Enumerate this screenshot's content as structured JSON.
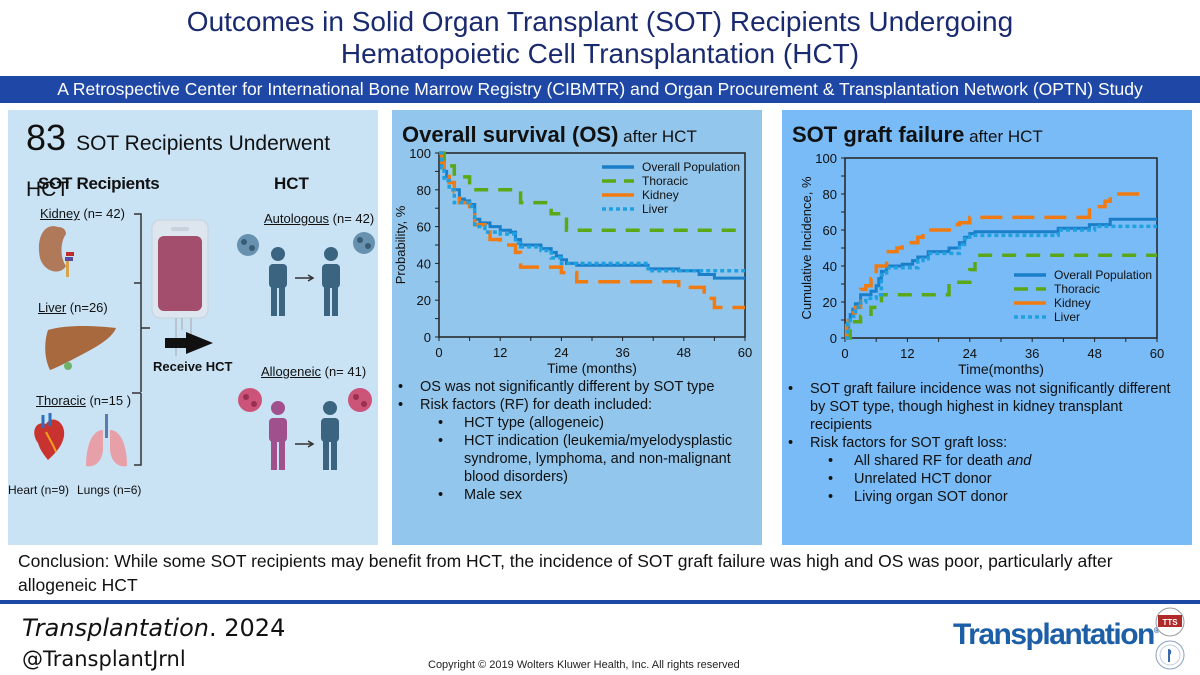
{
  "header": {
    "title_line1": "Outcomes in Solid Organ Transplant (SOT) Recipients Undergoing",
    "title_line2": "Hematopoietic Cell Transplantation (HCT)",
    "subtitle": "A Retrospective Center for International Bone Marrow Registry (CIBMTR) and Organ Procurement & Transplantation Network (OPTN) Study"
  },
  "left_panel": {
    "count": "83",
    "count_label": "SOT Recipients Underwent HCT",
    "sot_heading": "SOT Recipients",
    "hct_heading": "HCT",
    "kidney_label": "Kidney",
    "kidney_n": " (n= 42)",
    "liver_label": "Liver",
    "liver_n": " (n=26)",
    "thoracic_label": "Thoracic",
    "thoracic_n": " (n=15 )",
    "heart": "Heart (n=9)",
    "lungs": "Lungs (n=6)",
    "receive": "Receive HCT",
    "autologous_label": "Autologous",
    "autologous_n": " (n= 42)",
    "allogeneic_label": "Allogeneic",
    "allogeneic_n": " (n= 41)",
    "colors": {
      "donor_auto": "#3b6480",
      "donor_allo": "#a0508c",
      "blood_bag": "#a24e6c",
      "arrow": "#111111"
    }
  },
  "middle_panel": {
    "title_bold": "Overall survival (OS)",
    "title_rest": " after HCT",
    "bullets": [
      {
        "level": 1,
        "text": "OS was not significantly different by SOT type"
      },
      {
        "level": 1,
        "text": "Risk factors (RF) for death included:"
      },
      {
        "level": 2,
        "text": "HCT type (allogeneic)"
      },
      {
        "level": 2,
        "text": "HCT indication (leukemia/myelodysplastic syndrome, lymphoma, and non-malignant blood disorders)"
      },
      {
        "level": 2,
        "text": "Male sex"
      }
    ]
  },
  "right_panel": {
    "title_bold": "SOT graft failure",
    "title_rest": " after HCT",
    "bullets": [
      {
        "level": 1,
        "text": "SOT graft failure incidence was not significantly different by SOT type, though highest in kidney transplant recipients"
      },
      {
        "level": 1,
        "text": "Risk factors for SOT graft loss:"
      },
      {
        "level": 2,
        "text": "All shared RF for death ",
        "italic": "and"
      },
      {
        "level": 2,
        "text": "Unrelated HCT donor"
      },
      {
        "level": 2,
        "text": "Living organ SOT donor"
      }
    ]
  },
  "chart_data": [
    {
      "type": "line",
      "subtype": "step",
      "title": "Overall survival (OS) after HCT",
      "xlabel": "Time (months)",
      "ylabel": "Probability, %",
      "xlim": [
        0,
        60
      ],
      "ylim": [
        0,
        100
      ],
      "xticks": [
        0,
        12,
        24,
        36,
        48,
        60
      ],
      "yticks": [
        0,
        20,
        40,
        60,
        80,
        100
      ],
      "grid": false,
      "legend": "top-right",
      "series": [
        {
          "name": "Overall Population",
          "color": "#1a7fc8",
          "style": "solid",
          "x": [
            0,
            0.5,
            1,
            1.5,
            2,
            3,
            4,
            5,
            6,
            7,
            8,
            10,
            12,
            14,
            15,
            16,
            20,
            22,
            23,
            24,
            25,
            27,
            41,
            47,
            51,
            54,
            60
          ],
          "y": [
            100,
            94,
            90,
            87,
            84,
            80,
            75,
            74,
            72,
            64,
            62,
            60,
            58,
            57,
            53,
            50,
            48,
            46,
            44,
            42,
            40,
            39,
            37,
            36,
            34,
            32,
            32
          ]
        },
        {
          "name": "Thoracic",
          "color": "#5aa817",
          "style": "dashed",
          "x": [
            0,
            1,
            3,
            6,
            12,
            16,
            22,
            25,
            60
          ],
          "y": [
            100,
            93,
            87,
            80,
            80,
            73,
            67,
            58,
            58
          ]
        },
        {
          "name": "Kidney",
          "color": "#f07b12",
          "style": "longdash",
          "x": [
            0,
            0.5,
            1,
            2,
            3,
            4,
            6,
            7,
            9,
            10,
            12,
            15,
            16,
            24,
            27,
            47,
            52,
            54,
            60
          ],
          "y": [
            100,
            95,
            90,
            84,
            79,
            73,
            69,
            61,
            57,
            53,
            50,
            46,
            38,
            35,
            30,
            27,
            21,
            16,
            16
          ]
        },
        {
          "name": "Liver",
          "color": "#20a0e0",
          "style": "dotted",
          "x": [
            0,
            0.5,
            1,
            2,
            3,
            5,
            6,
            7,
            9,
            12,
            15,
            16,
            20,
            22,
            24,
            27,
            41,
            60
          ],
          "y": [
            100,
            92,
            85,
            80,
            73,
            73,
            71,
            60,
            57,
            56,
            51,
            49,
            47,
            43,
            40,
            40,
            36,
            36
          ]
        }
      ]
    },
    {
      "type": "line",
      "subtype": "step",
      "title": "SOT graft failure after HCT",
      "xlabel": "Time(months)",
      "ylabel": "Cumulative Incidence, %",
      "xlim": [
        0,
        60
      ],
      "ylim": [
        0,
        100
      ],
      "xticks": [
        0,
        12,
        24,
        36,
        48,
        60
      ],
      "yticks": [
        0,
        20,
        40,
        60,
        80,
        100
      ],
      "grid": false,
      "legend": "bottom-right",
      "series": [
        {
          "name": "Overall Population",
          "color": "#1a7fc8",
          "style": "solid",
          "x": [
            0,
            0.3,
            0.7,
            1,
            1.5,
            2,
            3,
            5,
            6,
            6.5,
            7,
            8,
            11,
            13,
            14,
            16,
            20,
            22,
            23,
            24,
            25,
            41,
            47,
            51,
            60
          ],
          "y": [
            0,
            6,
            10,
            13,
            16,
            19,
            24,
            26,
            29,
            33,
            37,
            40,
            41,
            43,
            45,
            48,
            50,
            53,
            56,
            58,
            59,
            61,
            63,
            66,
            66
          ]
        },
        {
          "name": "Thoracic",
          "color": "#5aa817",
          "style": "dashed",
          "x": [
            0,
            1,
            3,
            5,
            7,
            19,
            20,
            24,
            25,
            60
          ],
          "y": [
            0,
            9,
            12,
            17,
            24,
            24,
            31,
            38,
            46,
            46
          ]
        },
        {
          "name": "Kidney",
          "color": "#f07b12",
          "style": "longdash",
          "x": [
            0,
            0.3,
            0.6,
            2,
            3,
            4,
            5,
            6,
            8,
            10,
            11,
            14,
            15,
            16,
            19,
            21,
            22,
            24,
            47,
            50,
            51,
            57
          ],
          "y": [
            0,
            7,
            14,
            17,
            27,
            29,
            33,
            40,
            48,
            50,
            53,
            56,
            59,
            60,
            60,
            63,
            64,
            67,
            73,
            76,
            80,
            80
          ]
        },
        {
          "name": "Liver",
          "color": "#20a0e0",
          "style": "dotted",
          "x": [
            0,
            0.5,
            1,
            2,
            3,
            4,
            6,
            7,
            8,
            10,
            14,
            15,
            16,
            21,
            22,
            23,
            24,
            41,
            48,
            60
          ],
          "y": [
            0,
            8,
            12,
            17,
            20,
            22,
            24,
            35,
            39,
            39,
            43,
            44,
            47,
            47,
            52,
            55,
            57,
            60,
            62,
            62
          ]
        }
      ]
    }
  ],
  "conclusion": "Conclusion: While some SOT recipients may benefit from HCT, the incidence of SOT graft failure was high and OS was poor, particularly after allogeneic HCT",
  "footer": {
    "journal": "Transplantation",
    "year": ". 2024",
    "handle": "@TransplantJrnl",
    "copyright": "Copyright © 2019  Wolters Kluwer Health, Inc. All rights reserved",
    "logo_text": "Transplantation",
    "logo_mark": "®",
    "society_badge_1": "TTS",
    "colors": {
      "band": "#1f48a6",
      "logo": "#1d5fa6"
    }
  }
}
